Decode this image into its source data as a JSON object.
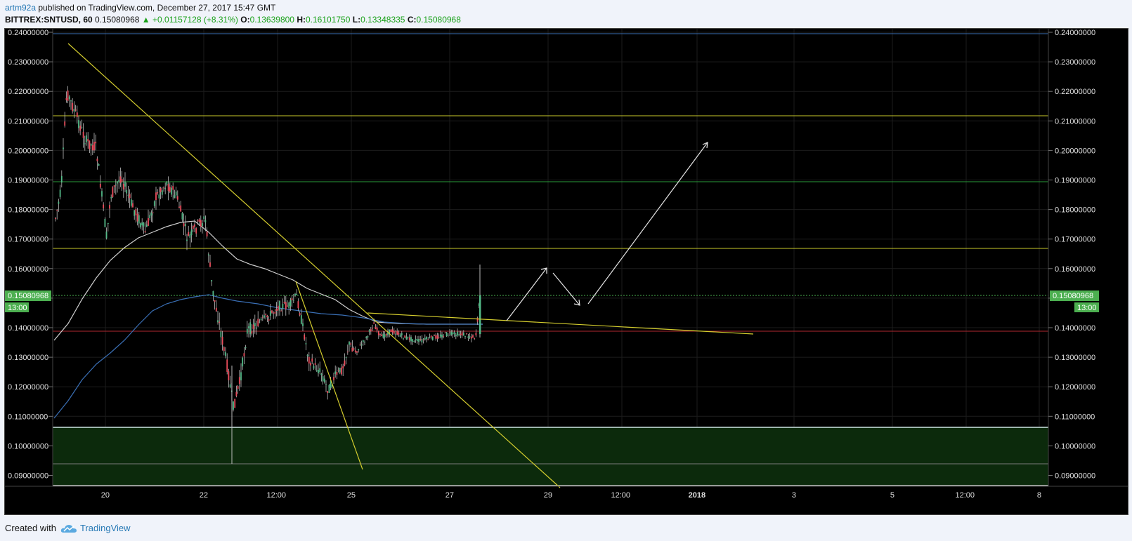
{
  "header": {
    "username": "artm92a",
    "published_text": "published on TradingView.com, December 27, 2017 15:47 GMT",
    "symbol": "BITTREX:SNTUSD, 60",
    "last_price": "0.15080968",
    "change": "+0.01157128 (+8.31%)",
    "open_label": "O:",
    "open": "0.13639800",
    "high_label": "H:",
    "high": "0.16101750",
    "low_label": "L:",
    "low": "0.13348335",
    "close_label": "C:",
    "close": "0.15080968"
  },
  "price_axis": {
    "ticks": [
      "0.24000000",
      "0.23000000",
      "0.22000000",
      "0.21000000",
      "0.20000000",
      "0.19000000",
      "0.18000000",
      "0.17000000",
      "0.16000000",
      "0.15000000",
      "0.14000000",
      "0.13000000",
      "0.12000000",
      "0.11000000",
      "0.10000000",
      "0.09000000"
    ],
    "current_price_label": "0.15080968",
    "countdown_label": "13:00"
  },
  "time_axis": {
    "ticks": [
      "20",
      "22",
      "12:00",
      "25",
      "27",
      "29",
      "12:00",
      "2018",
      "3",
      "5",
      "12:00",
      "8"
    ]
  },
  "colors": {
    "background": "#000000",
    "up_candle": "#53b987",
    "down_candle": "#eb4d5c",
    "trendline": "#d4cd2e",
    "resistance": "#c8c92a",
    "support_green": "#2a9d3a",
    "support_red": "#b0282f",
    "ma_fast": "#cfcfcf",
    "ma_slow": "#3a6fb5",
    "zone": "#0c2a0c",
    "price_tag": "#4caf50"
  },
  "footer": {
    "created_with": "Created with",
    "brand": "TradingView"
  }
}
